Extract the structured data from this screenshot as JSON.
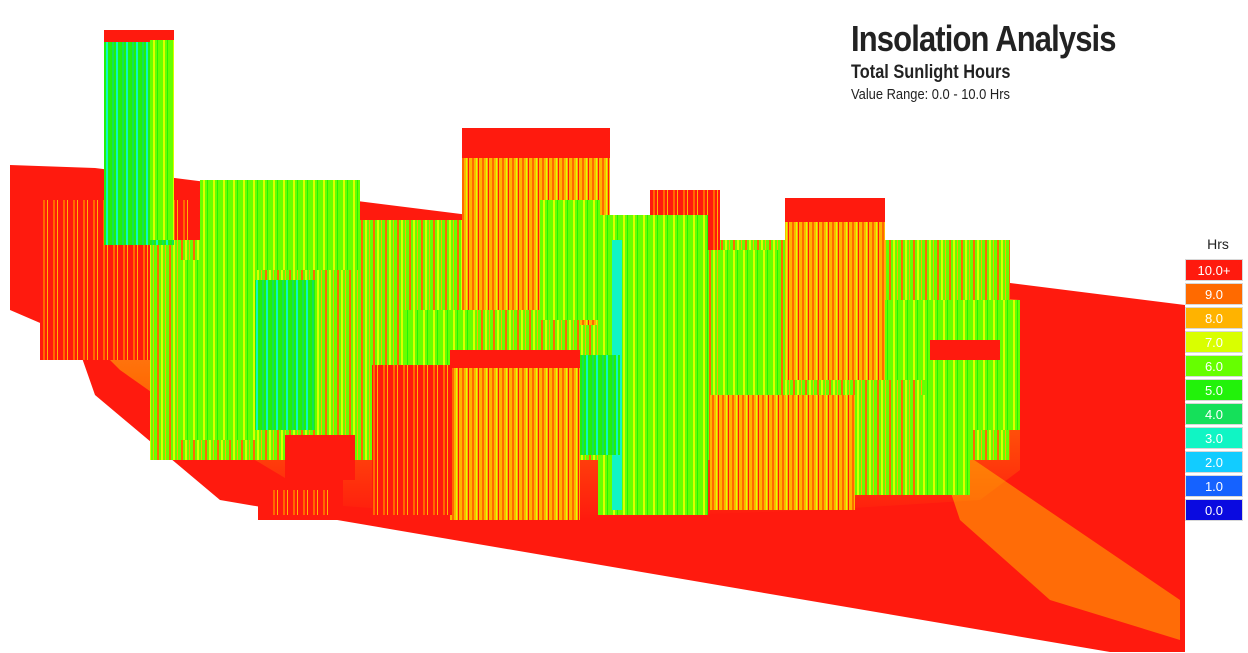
{
  "header": {
    "title": "Insolation Analysis",
    "subtitle": "Total Sunlight Hours",
    "value_range": "Value Range: 0.0 - 10.0 Hrs"
  },
  "legend": {
    "unit": "Hrs",
    "items": [
      {
        "label": "10.0+",
        "color": "#ff1a0e"
      },
      {
        "label": "9.0",
        "color": "#ff6a00"
      },
      {
        "label": "8.0",
        "color": "#ffb300"
      },
      {
        "label": "7.0",
        "color": "#d9ff00"
      },
      {
        "label": "6.0",
        "color": "#66ff00"
      },
      {
        "label": "5.0",
        "color": "#22f20a"
      },
      {
        "label": "4.0",
        "color": "#15e05a"
      },
      {
        "label": "3.0",
        "color": "#10f5c4"
      },
      {
        "label": "2.0",
        "color": "#12ccff"
      },
      {
        "label": "1.0",
        "color": "#1562ff"
      },
      {
        "label": "0.0",
        "color": "#0a0ae0"
      }
    ]
  },
  "scene": {
    "ground_color": "#ff1a0e",
    "facade_colors": [
      "#ff1a0e",
      "#ff6a00",
      "#ffb300",
      "#d9ff00",
      "#66ff00",
      "#22f20a",
      "#15e05a",
      "#10f5c4"
    ]
  }
}
